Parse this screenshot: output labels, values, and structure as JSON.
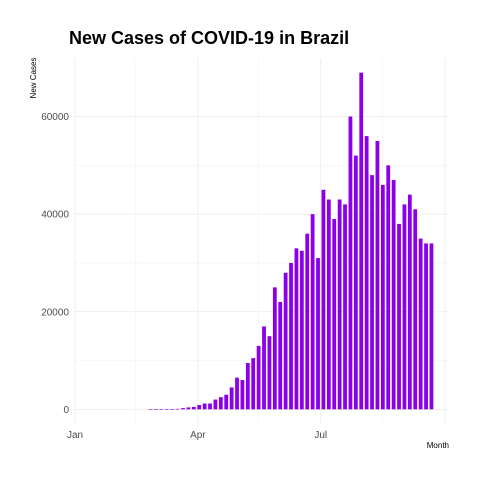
{
  "chart_data": {
    "type": "bar",
    "title": "New Cases of COVID-19 in Brazil",
    "xlabel": "Month",
    "ylabel": "New Cases",
    "x_tick_labels": [
      "Jan",
      "Apr",
      "Jul"
    ],
    "y_ticks": [
      0,
      20000,
      40000,
      60000
    ],
    "y_tick_labels": [
      "0",
      "20000",
      "40000",
      "60000"
    ],
    "xlim": [
      "2020-01-01",
      "2020-10-04"
    ],
    "ylim": [
      -3000,
      72000
    ],
    "grid": true,
    "bar_color": "#8b00e8",
    "x": [
      "2020-02-26",
      "2020-03-01",
      "2020-03-05",
      "2020-03-09",
      "2020-03-13",
      "2020-03-17",
      "2020-03-21",
      "2020-03-25",
      "2020-03-29",
      "2020-04-02",
      "2020-04-06",
      "2020-04-10",
      "2020-04-14",
      "2020-04-18",
      "2020-04-22",
      "2020-04-26",
      "2020-04-30",
      "2020-05-04",
      "2020-05-08",
      "2020-05-12",
      "2020-05-16",
      "2020-05-20",
      "2020-05-24",
      "2020-05-28",
      "2020-06-01",
      "2020-06-05",
      "2020-06-09",
      "2020-06-13",
      "2020-06-17",
      "2020-06-21",
      "2020-06-25",
      "2020-06-29",
      "2020-07-03",
      "2020-07-07",
      "2020-07-11",
      "2020-07-15",
      "2020-07-19",
      "2020-07-23",
      "2020-07-27",
      "2020-07-31",
      "2020-08-04",
      "2020-08-08",
      "2020-08-12",
      "2020-08-16",
      "2020-08-20",
      "2020-08-24",
      "2020-08-28",
      "2020-09-01",
      "2020-09-05",
      "2020-09-09",
      "2020-09-13",
      "2020-09-17",
      "2020-09-21"
    ],
    "values": [
      1,
      2,
      5,
      10,
      30,
      100,
      250,
      400,
      500,
      900,
      1200,
      1200,
      2000,
      2500,
      3000,
      4500,
      6500,
      6000,
      9500,
      10500,
      13000,
      17000,
      15000,
      25000,
      22000,
      28000,
      30000,
      33000,
      32500,
      36000,
      40000,
      31000,
      45000,
      43000,
      39000,
      43000,
      42000,
      60000,
      52000,
      69000,
      56000,
      48000,
      55000,
      46000,
      50000,
      47000,
      38000,
      42000,
      44000,
      41000,
      35000,
      34000,
      34000
    ]
  }
}
